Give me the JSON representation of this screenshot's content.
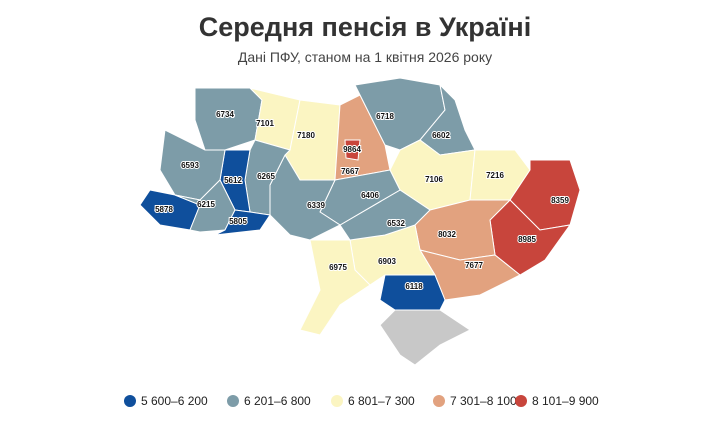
{
  "title": "Середня пенсія в Україні",
  "subtitle": "Дані ПФУ, станом на 1 квітня 2026 року",
  "regions": [
    {
      "value": 6734
    },
    {
      "value": 7101
    },
    {
      "value": 7180
    },
    {
      "value": 7667
    },
    {
      "value": 6718
    },
    {
      "value": 6602
    },
    {
      "value": 7106
    },
    {
      "value": 7216
    },
    {
      "value": 8359
    },
    {
      "value": 8985
    },
    {
      "value": 8032
    },
    {
      "value": 7677
    },
    {
      "value": 6118
    },
    {
      "value": 6903
    },
    {
      "value": 6975
    },
    {
      "value": 6532
    },
    {
      "value": 6406
    },
    {
      "value": 6339
    },
    {
      "value": 6265
    },
    {
      "value": 5612
    },
    {
      "value": 6593
    },
    {
      "value": 5878
    },
    {
      "value": 6215
    },
    {
      "value": 5805
    },
    {
      "value": 9864
    }
  ],
  "legend": [
    {
      "label": "5 600–6 200",
      "min": 5600,
      "max": 6200,
      "color": "#0f4f9c"
    },
    {
      "label": "6 201–6 800",
      "min": 6201,
      "max": 6800,
      "color": "#7d9ca8"
    },
    {
      "label": "6 801–7 300",
      "min": 6801,
      "max": 7300,
      "color": "#fbf5c2"
    },
    {
      "label": "7 301–8 100",
      "min": 7301,
      "max": 8100,
      "color": "#e2a27f"
    },
    {
      "label": "8 101–9 900",
      "min": 8101,
      "max": 9900,
      "color": "#c8453c"
    }
  ]
}
